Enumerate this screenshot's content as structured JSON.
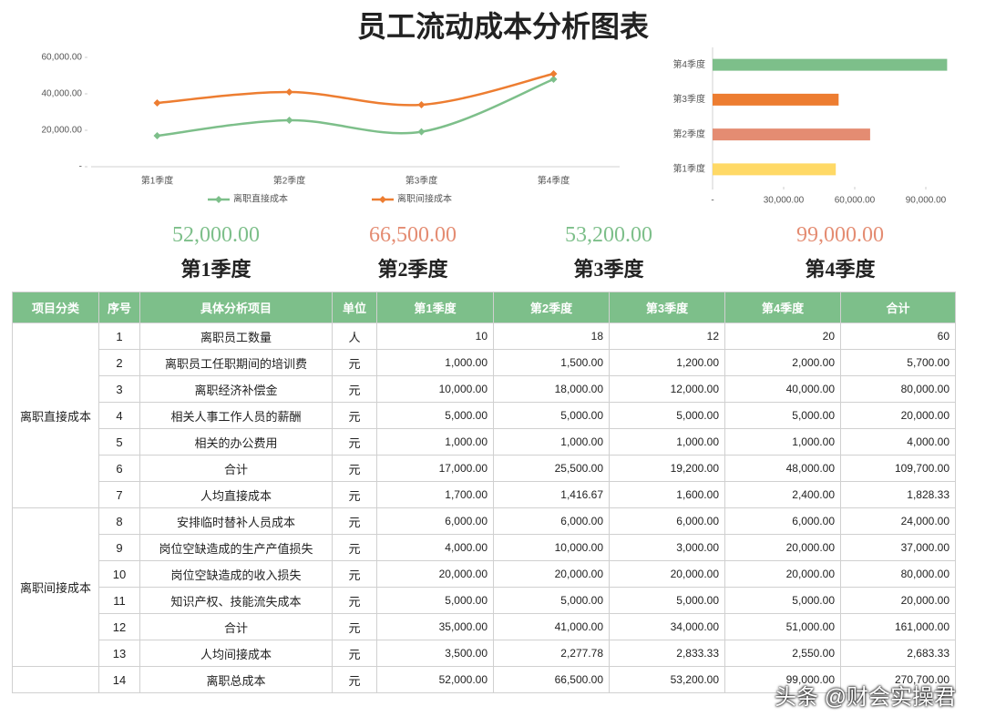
{
  "title": "员工流动成本分析图表",
  "chart_data": [
    {
      "type": "line",
      "categories": [
        "第1季度",
        "第2季度",
        "第3季度",
        "第4季度"
      ],
      "series": [
        {
          "name": "离职直接成本",
          "color": "#7dbf8a",
          "values": [
            17000,
            25500,
            19200,
            48000
          ]
        },
        {
          "name": "离职间接成本",
          "color": "#ed7d31",
          "values": [
            35000,
            41000,
            34000,
            51000
          ]
        }
      ],
      "ylim": [
        0,
        60000
      ],
      "yticks": [
        {
          "value": 0,
          "label": "-"
        },
        {
          "value": 20000,
          "label": "20,000.00"
        },
        {
          "value": 40000,
          "label": "40,000.00"
        },
        {
          "value": 60000,
          "label": "60,000.00"
        }
      ],
      "legend": "bottom"
    },
    {
      "type": "hbar",
      "categories": [
        "第1季度",
        "第2季度",
        "第3季度",
        "第4季度"
      ],
      "values": [
        52000,
        66500,
        53200,
        99000
      ],
      "colors": [
        "#ffd966",
        "#e48c72",
        "#ed7d31",
        "#7dbf8a"
      ],
      "xlim": [
        0,
        100000
      ],
      "xticks": [
        {
          "value": 0,
          "label": "-"
        },
        {
          "value": 30000,
          "label": "30,000.00"
        },
        {
          "value": 60000,
          "label": "60,000.00"
        },
        {
          "value": 90000,
          "label": "90,000.00"
        }
      ]
    }
  ],
  "cards": [
    {
      "amount": "52,000.00",
      "label": "第1季度",
      "color": "#7dbf8a"
    },
    {
      "amount": "66,500.00",
      "label": "第2季度",
      "color": "#e48c72"
    },
    {
      "amount": "53,200.00",
      "label": "第3季度",
      "color": "#7dbf8a"
    },
    {
      "amount": "99,000.00",
      "label": "第4季度",
      "color": "#e48c72"
    }
  ],
  "table": {
    "header": [
      "项目分类",
      "序号",
      "具体分析项目",
      "单位",
      "第1季度",
      "第2季度",
      "第3季度",
      "第4季度",
      "合计"
    ],
    "groups": [
      {
        "name": "离职直接成本",
        "rows": [
          [
            "1",
            "离职员工数量",
            "人",
            "10",
            "18",
            "12",
            "20",
            "60"
          ],
          [
            "2",
            "离职员工任职期间的培训费",
            "元",
            "1,000.00",
            "1,500.00",
            "1,200.00",
            "2,000.00",
            "5,700.00"
          ],
          [
            "3",
            "离职经济补偿金",
            "元",
            "10,000.00",
            "18,000.00",
            "12,000.00",
            "40,000.00",
            "80,000.00"
          ],
          [
            "4",
            "相关人事工作人员的薪酬",
            "元",
            "5,000.00",
            "5,000.00",
            "5,000.00",
            "5,000.00",
            "20,000.00"
          ],
          [
            "5",
            "相关的办公费用",
            "元",
            "1,000.00",
            "1,000.00",
            "1,000.00",
            "1,000.00",
            "4,000.00"
          ],
          [
            "6",
            "合计",
            "元",
            "17,000.00",
            "25,500.00",
            "19,200.00",
            "48,000.00",
            "109,700.00"
          ],
          [
            "7",
            "人均直接成本",
            "元",
            "1,700.00",
            "1,416.67",
            "1,600.00",
            "2,400.00",
            "1,828.33"
          ]
        ]
      },
      {
        "name": "离职间接成本",
        "rows": [
          [
            "8",
            "安排临时替补人员成本",
            "元",
            "6,000.00",
            "6,000.00",
            "6,000.00",
            "6,000.00",
            "24,000.00"
          ],
          [
            "9",
            "岗位空缺造成的生产产值损失",
            "元",
            "4,000.00",
            "10,000.00",
            "3,000.00",
            "20,000.00",
            "37,000.00"
          ],
          [
            "10",
            "岗位空缺造成的收入损失",
            "元",
            "20,000.00",
            "20,000.00",
            "20,000.00",
            "20,000.00",
            "80,000.00"
          ],
          [
            "11",
            "知识产权、技能流失成本",
            "元",
            "5,000.00",
            "5,000.00",
            "5,000.00",
            "5,000.00",
            "20,000.00"
          ],
          [
            "12",
            "合计",
            "元",
            "35,000.00",
            "41,000.00",
            "34,000.00",
            "51,000.00",
            "161,000.00"
          ],
          [
            "13",
            "人均间接成本",
            "元",
            "3,500.00",
            "2,277.78",
            "2,833.33",
            "2,550.00",
            "2,683.33"
          ]
        ]
      }
    ],
    "total_row": [
      "14",
      "离职总成本",
      "元",
      "52,000.00",
      "66,500.00",
      "53,200.00",
      "99,000.00",
      "270,700.00"
    ]
  },
  "watermark": "头条 @财会实操君"
}
